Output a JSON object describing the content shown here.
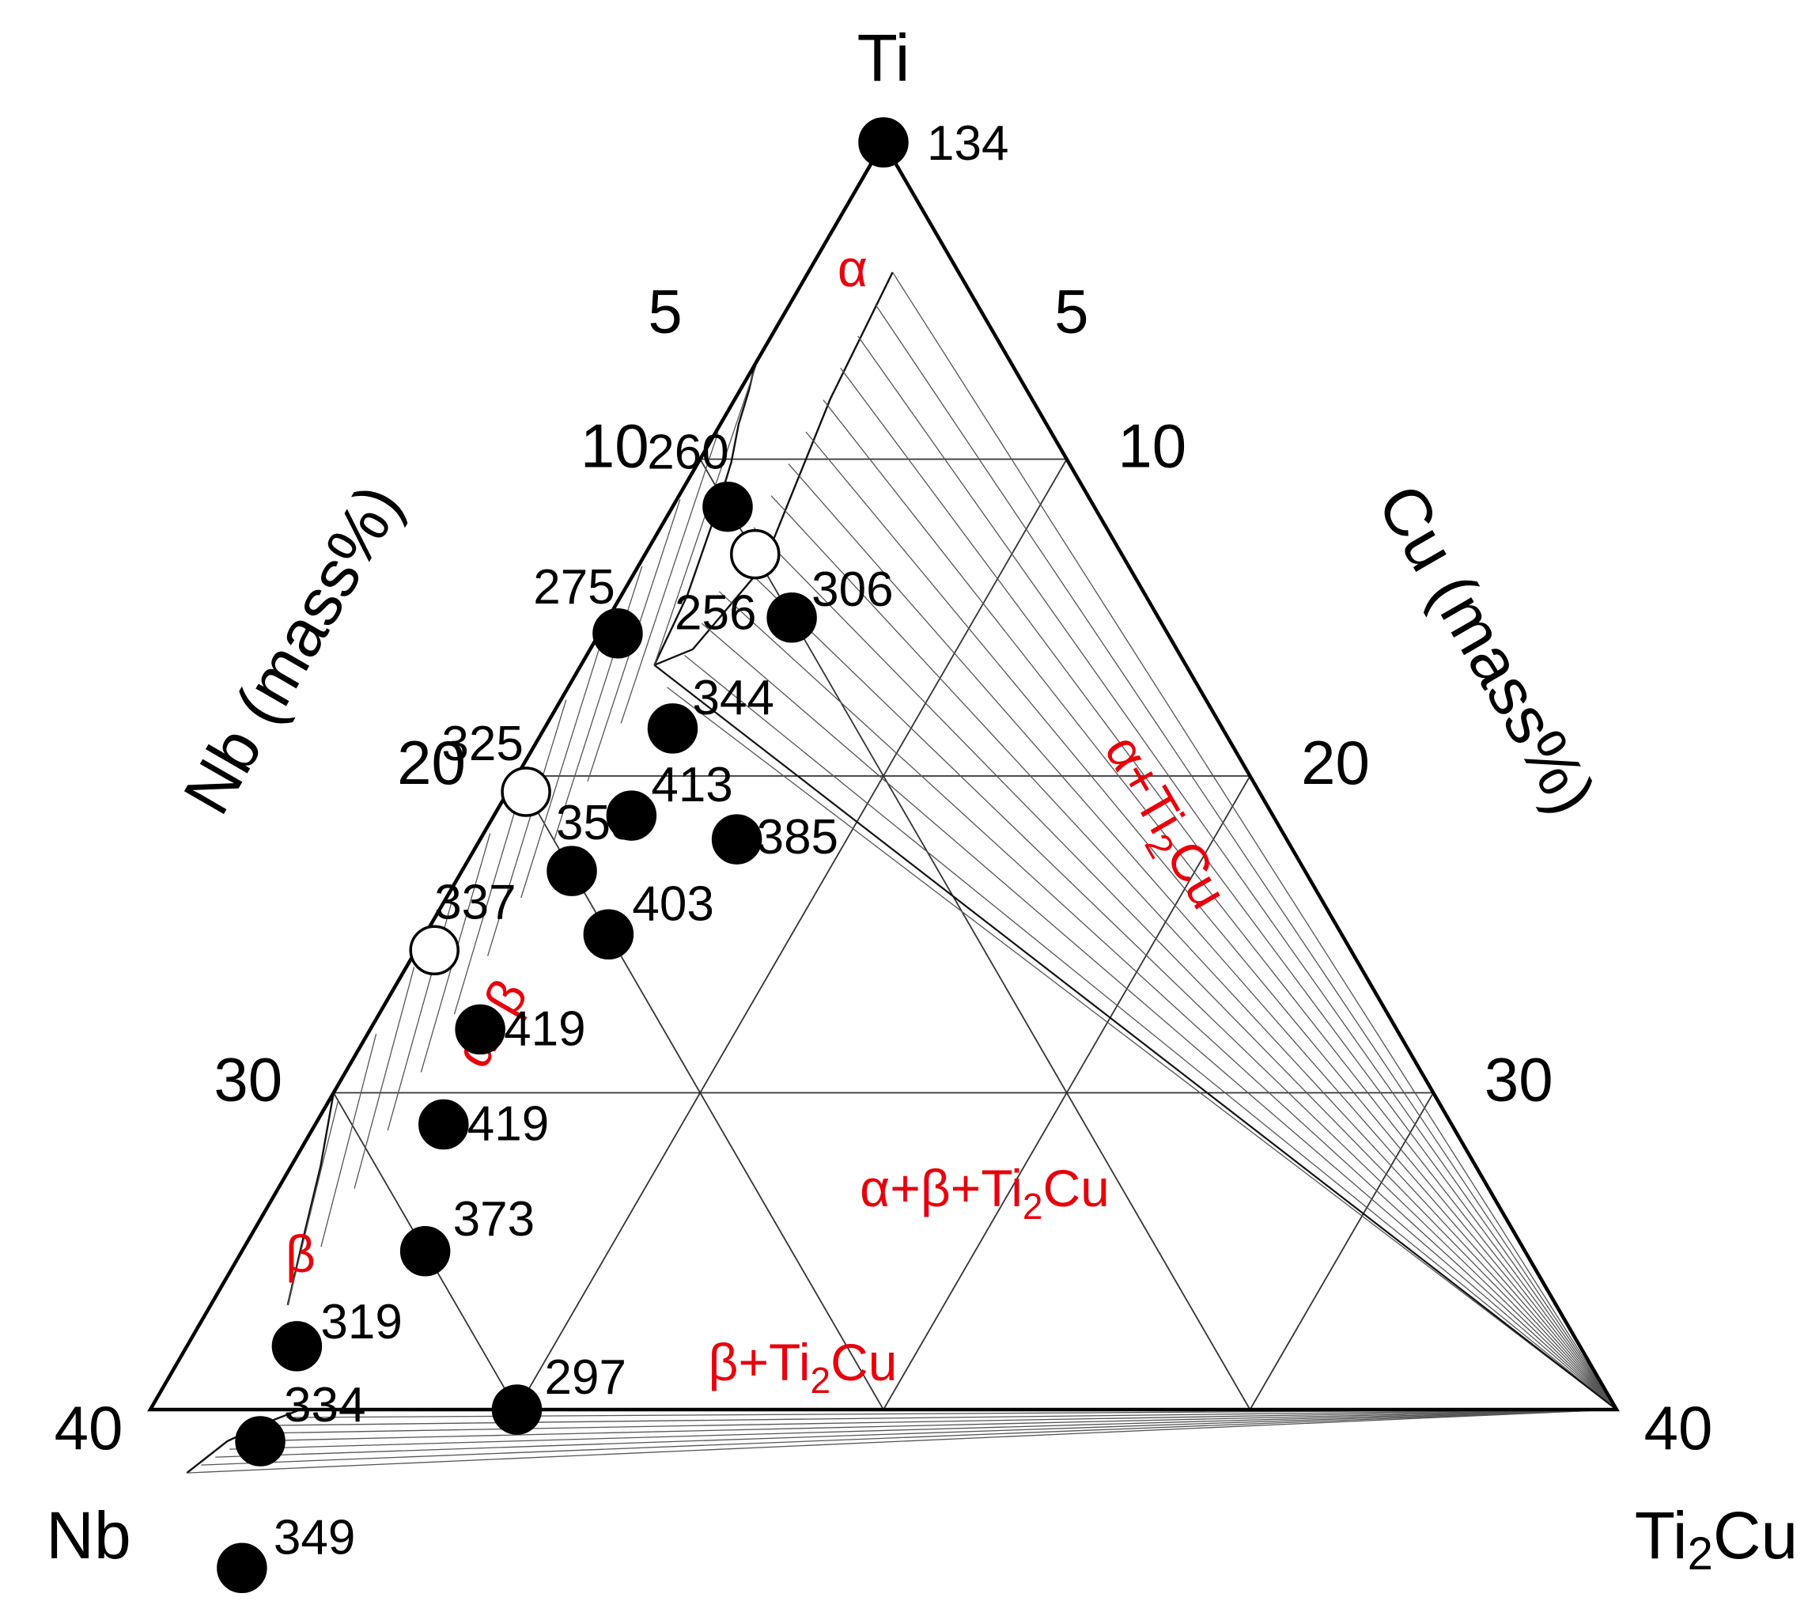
{
  "chart_data": {
    "type": "scatter",
    "subtype": "ternary",
    "corners": {
      "top": "Ti",
      "bottom_left": "Nb",
      "bottom_right": "Ti",
      "bottom_right_sub": "2",
      "bottom_right_tail": "Cu"
    },
    "axis_titles": {
      "left": "Nb (mass%)",
      "right": "Cu (mass%)"
    },
    "ticks": {
      "nb": [
        "5",
        "10",
        "20",
        "30",
        "40"
      ],
      "cu": [
        "5",
        "10",
        "20",
        "30",
        "40"
      ],
      "nb_values": [
        5,
        10,
        20,
        30,
        40
      ],
      "cu_values": [
        5,
        10,
        20,
        30,
        40
      ]
    },
    "range": {
      "max": 40
    },
    "grid": true,
    "regions": [
      {
        "id": "alpha",
        "text": "α",
        "sub": "",
        "tail": ""
      },
      {
        "id": "alpha-beta",
        "text": "α+β",
        "sub": "",
        "tail": ""
      },
      {
        "id": "alpha-ti2cu",
        "text": "α+Ti",
        "sub": "2",
        "tail": "Cu"
      },
      {
        "id": "alpha-beta-ti2cu",
        "text": "α+β+Ti",
        "sub": "2",
        "tail": "Cu"
      },
      {
        "id": "beta",
        "text": "β",
        "sub": "",
        "tail": ""
      },
      {
        "id": "beta-ti2cu",
        "text": "β+Ti",
        "sub": "2",
        "tail": "Cu"
      }
    ],
    "points": [
      {
        "label": "134",
        "nb": 0,
        "cu": 0,
        "filled": true
      },
      {
        "label": "260",
        "nb": 10,
        "cu": 1.5,
        "filled": true
      },
      {
        "label": "256",
        "nb": 10,
        "cu": 3,
        "filled": false
      },
      {
        "label": "306",
        "nb": 10,
        "cu": 5,
        "filled": true
      },
      {
        "label": "275",
        "nb": 15,
        "cu": 0.5,
        "filled": true
      },
      {
        "label": "344",
        "nb": 15,
        "cu": 3.5,
        "filled": true
      },
      {
        "label": "385",
        "nb": 15,
        "cu": 7,
        "filled": true
      },
      {
        "label": "413",
        "nb": 17.5,
        "cu": 3.75,
        "filled": true
      },
      {
        "label": "325",
        "nb": 20,
        "cu": 0.5,
        "filled": false
      },
      {
        "label": "353",
        "nb": 20,
        "cu": 3,
        "filled": true
      },
      {
        "label": "403",
        "nb": 20,
        "cu": 5,
        "filled": true
      },
      {
        "label": "337",
        "nb": 25,
        "cu": 0.5,
        "filled": false
      },
      {
        "label": "419",
        "nb": 25,
        "cu": 3,
        "filled": true
      },
      {
        "label": "419",
        "nb": 27.5,
        "cu": 3.5,
        "filled": true
      },
      {
        "label": "373",
        "nb": 30,
        "cu": 5,
        "filled": true
      },
      {
        "label": "297",
        "nb": 30,
        "cu": 10,
        "filled": true
      },
      {
        "label": "319",
        "nb": 35,
        "cu": 3,
        "filled": true
      },
      {
        "label": "334",
        "nb": 37.5,
        "cu": 3.5,
        "filled": true
      },
      {
        "label": "349",
        "nb": 40,
        "cu": 5,
        "filled": true
      }
    ]
  }
}
